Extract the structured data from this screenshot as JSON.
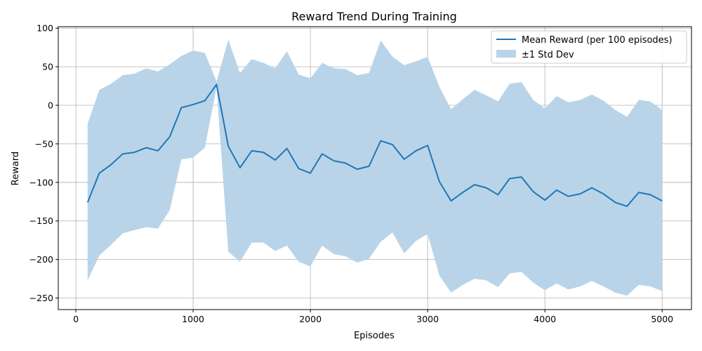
{
  "chart_data": {
    "type": "line",
    "title": "Reward Trend During Training",
    "xlabel": "Episodes",
    "ylabel": "Reward",
    "xlim": [
      -150,
      5250
    ],
    "ylim": [
      -265,
      102
    ],
    "xticks": [
      0,
      1000,
      2000,
      3000,
      4000,
      5000
    ],
    "yticks": [
      -250,
      -200,
      -150,
      -100,
      -50,
      0,
      50,
      100
    ],
    "grid": true,
    "legend_position": "top-right",
    "colors": {
      "line": "#1f77b4",
      "band": "#b9d4e8",
      "grid": "#b0b0b0"
    },
    "x": [
      100,
      200,
      300,
      400,
      500,
      600,
      700,
      800,
      900,
      1000,
      1100,
      1200,
      1300,
      1400,
      1500,
      1600,
      1700,
      1800,
      1900,
      2000,
      2100,
      2200,
      2300,
      2400,
      2500,
      2600,
      2700,
      2800,
      2900,
      3000,
      3100,
      3200,
      3300,
      3400,
      3500,
      3600,
      3700,
      3800,
      3900,
      4000,
      4100,
      4200,
      4300,
      4400,
      4500,
      4600,
      4700,
      4800,
      4900,
      5000
    ],
    "series": [
      {
        "name": "Mean Reward (per 100 episodes)",
        "values": [
          -126,
          -88,
          -77,
          -63,
          -61,
          -55,
          -59,
          -41,
          -3,
          1,
          6,
          27,
          -53,
          -81,
          -59,
          -61,
          -71,
          -56,
          -82,
          -88,
          -63,
          -72,
          -75,
          -83,
          -79,
          -46,
          -51,
          -70,
          -59,
          -52,
          -99,
          -124,
          -113,
          -103,
          -107,
          -116,
          -95,
          -93,
          -112,
          -123,
          -110,
          -118,
          -115,
          -107,
          -115,
          -126,
          -131,
          -113,
          -116,
          -124
        ]
      },
      {
        "name": "±1 Std Dev",
        "upper": [
          -24,
          20,
          28,
          39,
          41,
          48,
          44,
          53,
          64,
          71,
          68,
          31,
          85,
          42,
          60,
          55,
          48,
          70,
          40,
          35,
          55,
          48,
          47,
          39,
          42,
          84,
          63,
          52,
          57,
          63,
          24,
          -5,
          8,
          20,
          13,
          5,
          28,
          30,
          7,
          -4,
          12,
          4,
          7,
          14,
          6,
          -6,
          -15,
          7,
          5,
          -6
        ],
        "lower": [
          -227,
          -195,
          -181,
          -166,
          -162,
          -158,
          -160,
          -136,
          -70,
          -68,
          -55,
          23,
          -190,
          -203,
          -178,
          -178,
          -189,
          -182,
          -203,
          -209,
          -182,
          -193,
          -196,
          -204,
          -199,
          -177,
          -165,
          -192,
          -176,
          -167,
          -221,
          -243,
          -233,
          -225,
          -227,
          -236,
          -218,
          -216,
          -230,
          -240,
          -231,
          -239,
          -235,
          -228,
          -235,
          -243,
          -247,
          -233,
          -235,
          -241
        ]
      }
    ]
  }
}
